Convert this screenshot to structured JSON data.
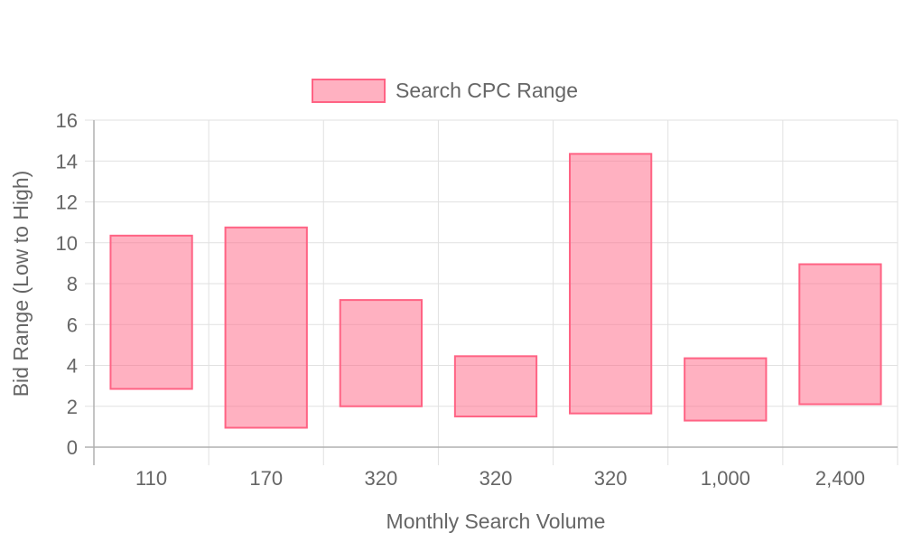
{
  "chart_data": {
    "type": "bar",
    "subtype": "floating-range",
    "categories": [
      "110",
      "170",
      "320",
      "320",
      "320",
      "1,000",
      "2,400"
    ],
    "series": [
      {
        "name": "Search CPC Range",
        "ranges": [
          [
            2.85,
            10.35
          ],
          [
            0.95,
            10.75
          ],
          [
            2.0,
            7.2
          ],
          [
            1.5,
            4.45
          ],
          [
            1.65,
            14.35
          ],
          [
            1.3,
            4.35
          ],
          [
            2.1,
            8.95
          ]
        ],
        "color": "#ff6384",
        "fill": "rgba(255, 99, 132, 0.5)"
      }
    ],
    "xlabel": "Monthly Search Volume",
    "ylabel": "Bid Range (Low to High)",
    "ylim": [
      0,
      16
    ],
    "yticks": [
      "0",
      "2",
      "4",
      "6",
      "8",
      "10",
      "12",
      "14",
      "16"
    ],
    "grid": true,
    "legend_position": "top"
  }
}
